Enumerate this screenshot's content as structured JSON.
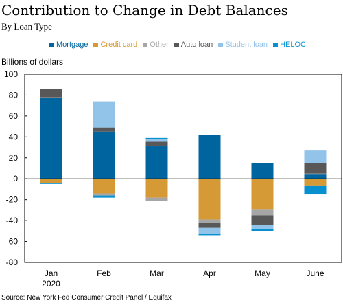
{
  "title": "Contribution to Change in Debt Balances",
  "subtitle": "By Loan Type",
  "unit_label": "Billions of dollars",
  "source": "Source: New York Fed Consumer Credit Panel / Equifax",
  "legend": [
    {
      "name": "Mortgage",
      "color": "#00649f"
    },
    {
      "name": "Credit card",
      "color": "#d59a35"
    },
    {
      "name": "Other",
      "color": "#a6a6a6"
    },
    {
      "name": "Auto loan",
      "color": "#585858"
    },
    {
      "name": "Student loan",
      "color": "#92c3e8"
    },
    {
      "name": "HELOC",
      "color": "#0790cf"
    }
  ],
  "chart_data": {
    "type": "bar",
    "stacked": true,
    "categories": [
      "Jan 2020",
      "Feb",
      "Mar",
      "Apr",
      "May",
      "June"
    ],
    "ylim": [
      -80,
      100
    ],
    "yticks": [
      -80,
      -60,
      -40,
      -20,
      0,
      20,
      40,
      60,
      80,
      100
    ],
    "grid": false,
    "legend_position": "top",
    "series": [
      {
        "name": "Mortgage",
        "color": "#00649f",
        "values": [
          77,
          45,
          31,
          42,
          15,
          4
        ]
      },
      {
        "name": "Credit card",
        "color": "#d59a35",
        "values": [
          -4,
          -14,
          -18,
          -39,
          -29,
          -7
        ]
      },
      {
        "name": "Other",
        "color": "#a6a6a6",
        "values": [
          1,
          -2,
          -3,
          -3,
          -6,
          1
        ]
      },
      {
        "name": "Auto loan",
        "color": "#585858",
        "values": [
          8,
          4,
          5,
          -5,
          -9,
          10
        ]
      },
      {
        "name": "Student loan",
        "color": "#92c3e8",
        "values": [
          0,
          25,
          2,
          -6,
          -4,
          12
        ]
      },
      {
        "name": "HELOC",
        "color": "#0790cf",
        "values": [
          -1,
          -2,
          1,
          -1,
          -2,
          -8
        ]
      }
    ]
  }
}
